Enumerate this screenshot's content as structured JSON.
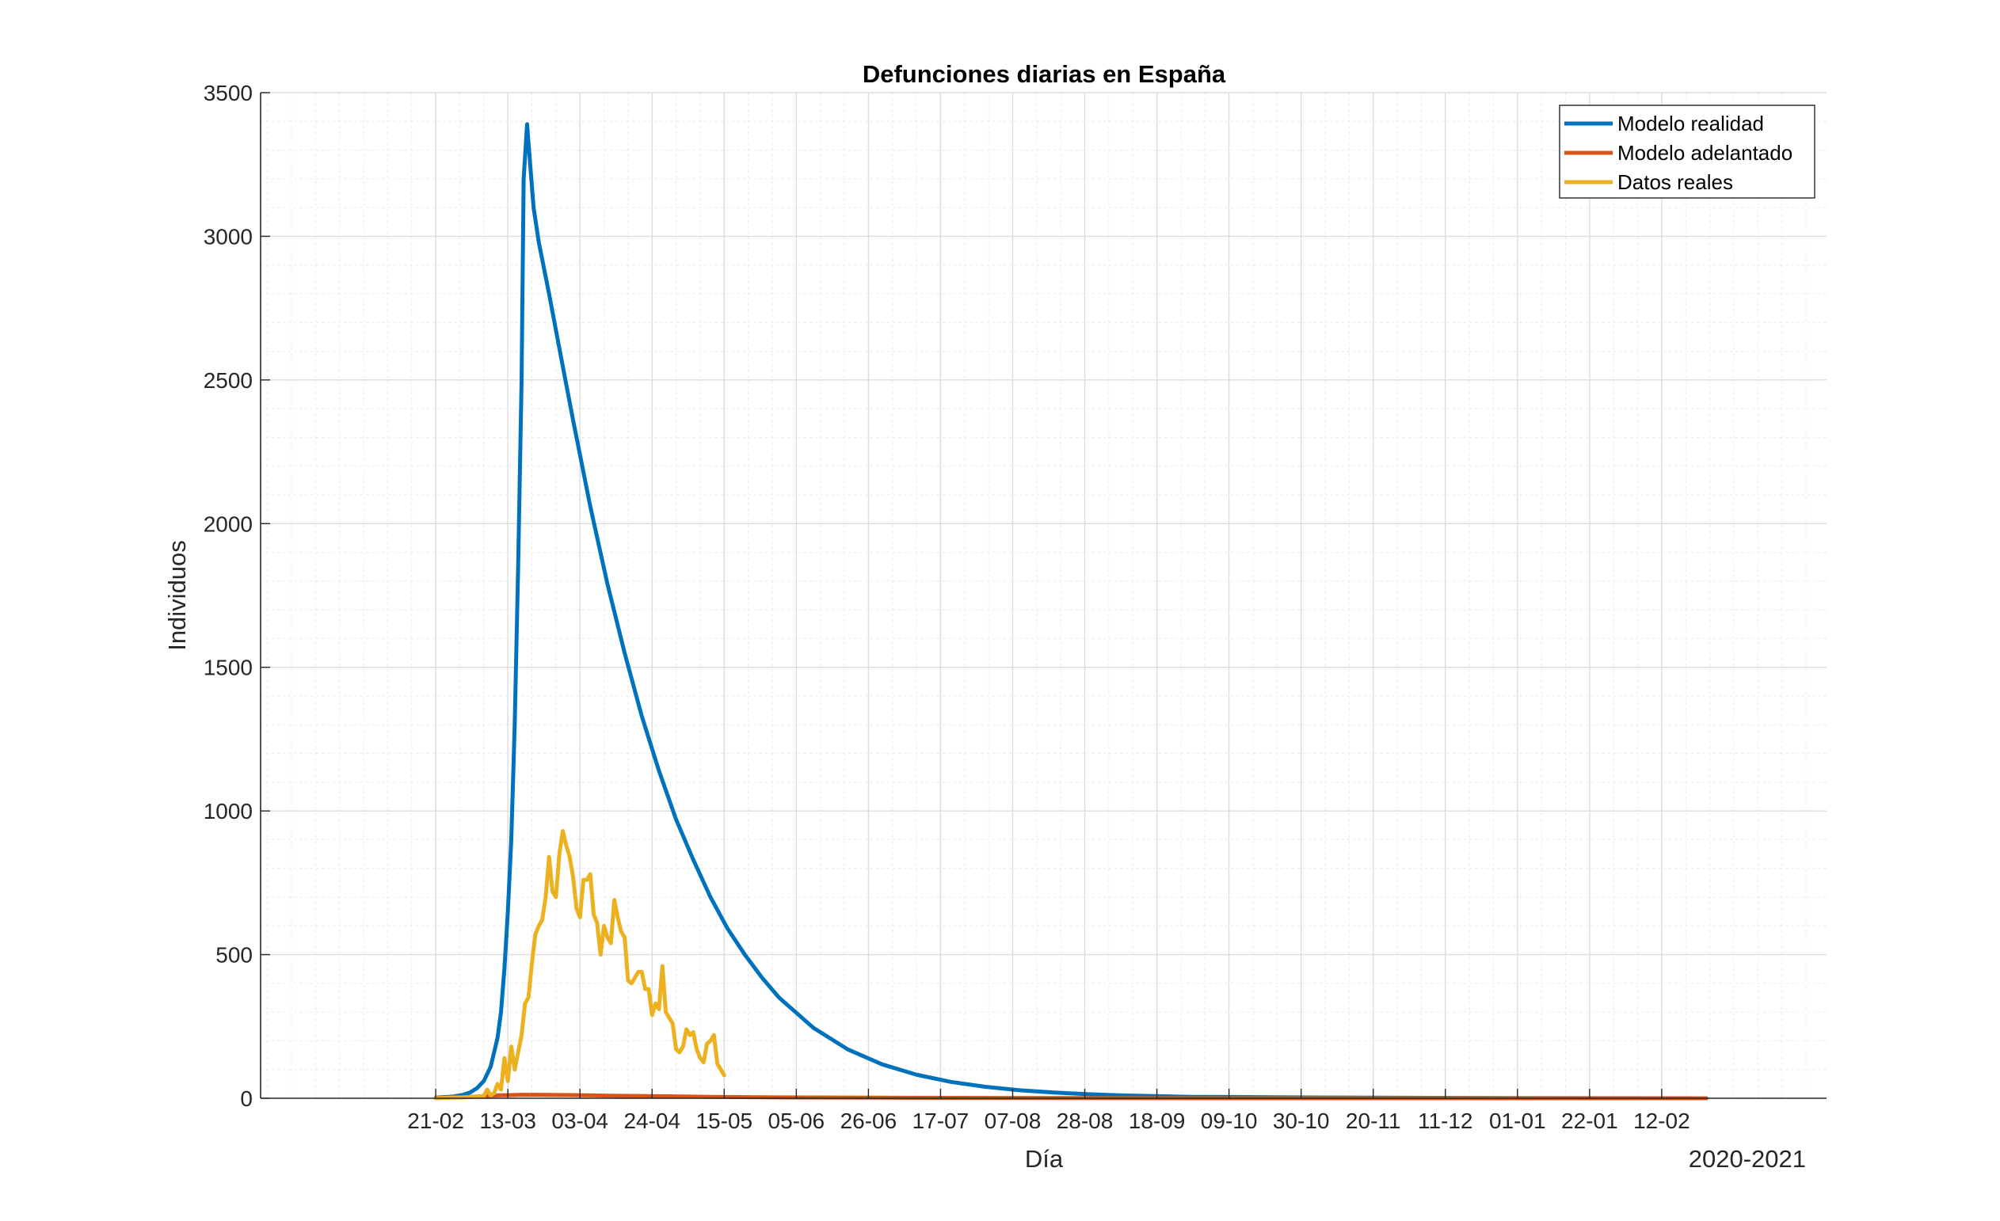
{
  "chart_data": {
    "type": "line",
    "title": "Defunciones diarias en España",
    "xlabel": "Día",
    "ylabel": "Individuos",
    "x_note": "2020-2021",
    "x_ticks": [
      "21-02",
      "13-03",
      "03-04",
      "24-04",
      "15-05",
      "05-06",
      "26-06",
      "17-07",
      "07-08",
      "28-08",
      "18-09",
      "09-10",
      "30-10",
      "20-11",
      "11-12",
      "01-01",
      "22-01",
      "12-02"
    ],
    "x_tick_days": [
      0,
      21,
      42,
      63,
      84,
      105,
      126,
      147,
      168,
      189,
      210,
      231,
      252,
      273,
      294,
      315,
      336,
      357
    ],
    "xlim_days": [
      -51,
      405
    ],
    "ylim": [
      0,
      3500
    ],
    "y_ticks": [
      0,
      500,
      1000,
      1500,
      2000,
      2500,
      3000,
      3500
    ],
    "grid": true,
    "minor_grid": true,
    "legend_position": "top-right",
    "series": [
      {
        "name": "Modelo realidad",
        "color": "#0072BD",
        "points": [
          [
            0,
            2
          ],
          [
            5,
            6
          ],
          [
            8,
            12
          ],
          [
            10,
            20
          ],
          [
            12,
            35
          ],
          [
            14,
            60
          ],
          [
            16,
            110
          ],
          [
            18,
            210
          ],
          [
            19,
            300
          ],
          [
            20,
            450
          ],
          [
            21,
            650
          ],
          [
            22,
            900
          ],
          [
            23,
            1300
          ],
          [
            24,
            1850
          ],
          [
            25,
            2500
          ],
          [
            25.6,
            3200
          ],
          [
            26.6,
            3390
          ],
          [
            27.5,
            3250
          ],
          [
            28.5,
            3100
          ],
          [
            30,
            2980
          ],
          [
            33,
            2800
          ],
          [
            36,
            2610
          ],
          [
            40,
            2360
          ],
          [
            45,
            2060
          ],
          [
            50,
            1790
          ],
          [
            55,
            1550
          ],
          [
            60,
            1330
          ],
          [
            65,
            1140
          ],
          [
            70,
            970
          ],
          [
            75,
            830
          ],
          [
            80,
            700
          ],
          [
            85,
            590
          ],
          [
            90,
            500
          ],
          [
            95,
            420
          ],
          [
            100,
            350
          ],
          [
            110,
            245
          ],
          [
            120,
            170
          ],
          [
            130,
            118
          ],
          [
            140,
            82
          ],
          [
            150,
            57
          ],
          [
            160,
            40
          ],
          [
            170,
            28
          ],
          [
            180,
            20
          ],
          [
            190,
            14
          ],
          [
            200,
            10
          ],
          [
            220,
            5
          ],
          [
            250,
            3
          ],
          [
            300,
            1
          ],
          [
            370,
            0
          ]
        ]
      },
      {
        "name": "Modelo adelantado",
        "color": "#D95319",
        "points": [
          [
            0,
            1
          ],
          [
            10,
            5
          ],
          [
            18,
            10
          ],
          [
            25,
            12
          ],
          [
            30,
            12
          ],
          [
            40,
            11
          ],
          [
            50,
            9
          ],
          [
            60,
            8
          ],
          [
            80,
            5
          ],
          [
            100,
            3
          ],
          [
            130,
            2
          ],
          [
            170,
            1
          ],
          [
            220,
            0.5
          ],
          [
            300,
            0.2
          ],
          [
            370,
            0
          ]
        ]
      },
      {
        "name": "Datos reales",
        "color": "#EDB120",
        "points": [
          [
            0,
            0
          ],
          [
            4,
            2
          ],
          [
            8,
            3
          ],
          [
            11,
            5
          ],
          [
            14,
            8
          ],
          [
            15,
            30
          ],
          [
            16,
            10
          ],
          [
            17,
            18
          ],
          [
            18,
            50
          ],
          [
            19,
            30
          ],
          [
            20,
            140
          ],
          [
            21,
            60
          ],
          [
            22,
            180
          ],
          [
            23,
            100
          ],
          [
            24,
            160
          ],
          [
            25,
            220
          ],
          [
            26,
            330
          ],
          [
            27,
            350
          ],
          [
            28,
            470
          ],
          [
            29,
            570
          ],
          [
            30,
            600
          ],
          [
            31,
            620
          ],
          [
            32,
            700
          ],
          [
            33,
            840
          ],
          [
            34,
            720
          ],
          [
            35,
            700
          ],
          [
            36,
            850
          ],
          [
            37,
            930
          ],
          [
            38,
            880
          ],
          [
            39,
            840
          ],
          [
            40,
            770
          ],
          [
            41,
            660
          ],
          [
            42,
            630
          ],
          [
            43,
            760
          ],
          [
            44,
            760
          ],
          [
            45,
            780
          ],
          [
            46,
            640
          ],
          [
            47,
            610
          ],
          [
            48,
            500
          ],
          [
            49,
            600
          ],
          [
            50,
            560
          ],
          [
            51,
            540
          ],
          [
            52,
            690
          ],
          [
            53,
            630
          ],
          [
            54,
            580
          ],
          [
            55,
            560
          ],
          [
            56,
            410
          ],
          [
            57,
            400
          ],
          [
            58,
            420
          ],
          [
            59,
            440
          ],
          [
            60,
            440
          ],
          [
            61,
            380
          ],
          [
            62,
            380
          ],
          [
            63,
            290
          ],
          [
            64,
            330
          ],
          [
            65,
            310
          ],
          [
            66,
            460
          ],
          [
            67,
            300
          ],
          [
            68,
            280
          ],
          [
            69,
            260
          ],
          [
            70,
            170
          ],
          [
            71,
            160
          ],
          [
            72,
            180
          ],
          [
            73,
            240
          ],
          [
            74,
            220
          ],
          [
            75,
            230
          ],
          [
            76,
            170
          ],
          [
            77,
            140
          ],
          [
            78,
            125
          ],
          [
            79,
            190
          ],
          [
            80,
            200
          ],
          [
            81,
            220
          ],
          [
            82,
            120
          ],
          [
            83,
            100
          ],
          [
            84,
            80
          ]
        ]
      }
    ]
  }
}
